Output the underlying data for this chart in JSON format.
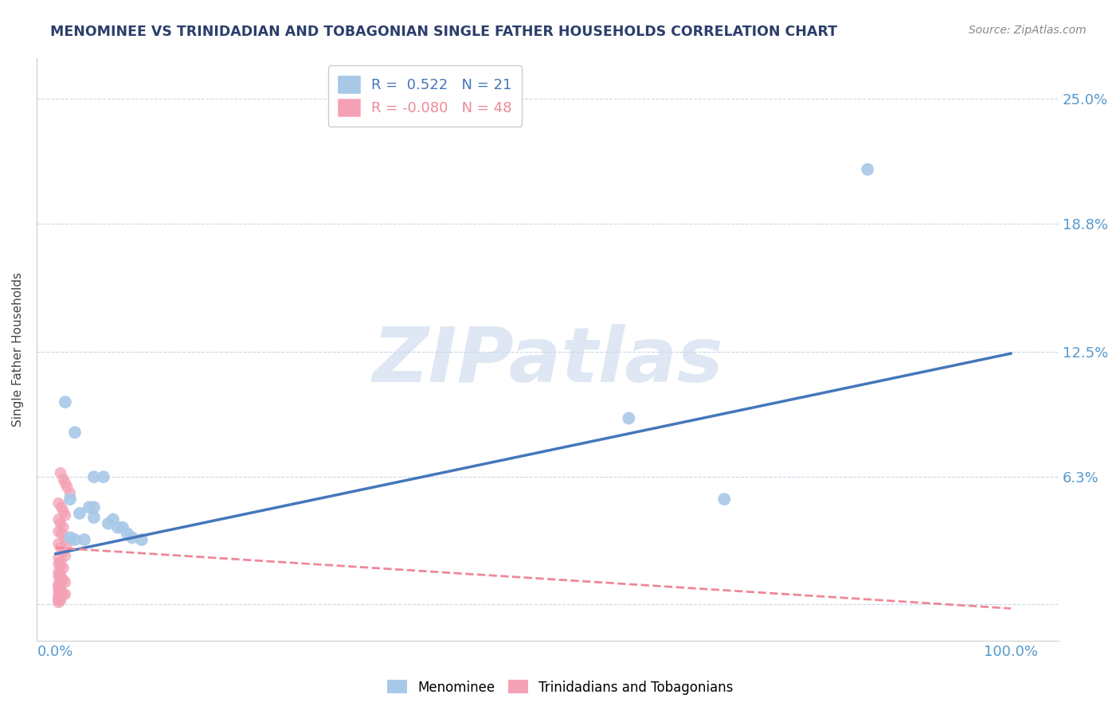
{
  "title": "MENOMINEE VS TRINIDADIAN AND TOBAGONIAN SINGLE FATHER HOUSEHOLDS CORRELATION CHART",
  "source": "Source: ZipAtlas.com",
  "ylabel": "Single Father Households",
  "watermark": "ZIPatlas",
  "legend_blue_R": "0.522",
  "legend_blue_N": "21",
  "legend_pink_R": "-0.080",
  "legend_pink_N": "48",
  "yticks": [
    0.0,
    0.063,
    0.125,
    0.188,
    0.25
  ],
  "ytick_labels": [
    "",
    "6.3%",
    "12.5%",
    "18.8%",
    "25.0%"
  ],
  "xtick_labels": [
    "0.0%",
    "100.0%"
  ],
  "xlim": [
    -0.02,
    1.05
  ],
  "ylim": [
    -0.018,
    0.27
  ],
  "blue_color": "#A8C8E8",
  "pink_color": "#F4A0B5",
  "blue_line_color": "#4477BB",
  "pink_line_color": "#EE8899",
  "title_color": "#2C3E6B",
  "source_color": "#888888",
  "tick_label_color": "#5599CC",
  "grid_color": "#C8D8E8",
  "background_color": "#FFFFFF",
  "menominee_x": [
    0.01,
    0.02,
    0.04,
    0.05,
    0.035,
    0.015,
    0.025,
    0.04,
    0.055,
    0.065,
    0.07,
    0.075,
    0.08,
    0.09,
    0.02,
    0.03,
    0.04,
    0.06,
    0.015,
    0.6,
    0.7
  ],
  "menominee_y": [
    0.1,
    0.085,
    0.063,
    0.063,
    0.048,
    0.052,
    0.045,
    0.043,
    0.04,
    0.038,
    0.038,
    0.035,
    0.033,
    0.032,
    0.032,
    0.032,
    0.048,
    0.042,
    0.033,
    0.092,
    0.052
  ],
  "menominee_outlier_x": [
    0.85
  ],
  "menominee_outlier_y": [
    0.215
  ],
  "trinidadian_x": [
    0.005,
    0.008,
    0.01,
    0.012,
    0.015,
    0.003,
    0.006,
    0.008,
    0.01,
    0.003,
    0.005,
    0.008,
    0.003,
    0.006,
    0.01,
    0.012,
    0.003,
    0.005,
    0.008,
    0.01,
    0.003,
    0.005,
    0.003,
    0.005,
    0.008,
    0.003,
    0.005,
    0.003,
    0.005,
    0.008,
    0.01,
    0.003,
    0.005,
    0.003,
    0.005,
    0.003,
    0.005,
    0.003,
    0.005,
    0.008,
    0.01,
    0.003,
    0.005,
    0.003,
    0.005,
    0.003,
    0.005,
    0.003
  ],
  "trinidadian_y": [
    0.065,
    0.062,
    0.06,
    0.058,
    0.055,
    0.05,
    0.048,
    0.046,
    0.044,
    0.042,
    0.04,
    0.038,
    0.036,
    0.035,
    0.032,
    0.03,
    0.03,
    0.028,
    0.026,
    0.024,
    0.023,
    0.021,
    0.02,
    0.019,
    0.018,
    0.016,
    0.015,
    0.014,
    0.013,
    0.012,
    0.011,
    0.01,
    0.01,
    0.009,
    0.008,
    0.008,
    0.007,
    0.006,
    0.006,
    0.005,
    0.005,
    0.004,
    0.004,
    0.003,
    0.003,
    0.002,
    0.002,
    0.001
  ],
  "blue_trendline_x": [
    0.0,
    1.0
  ],
  "blue_trendline_y": [
    0.025,
    0.124
  ],
  "pink_trendline_x": [
    0.0,
    1.0
  ],
  "pink_trendline_y": [
    0.028,
    -0.002
  ]
}
